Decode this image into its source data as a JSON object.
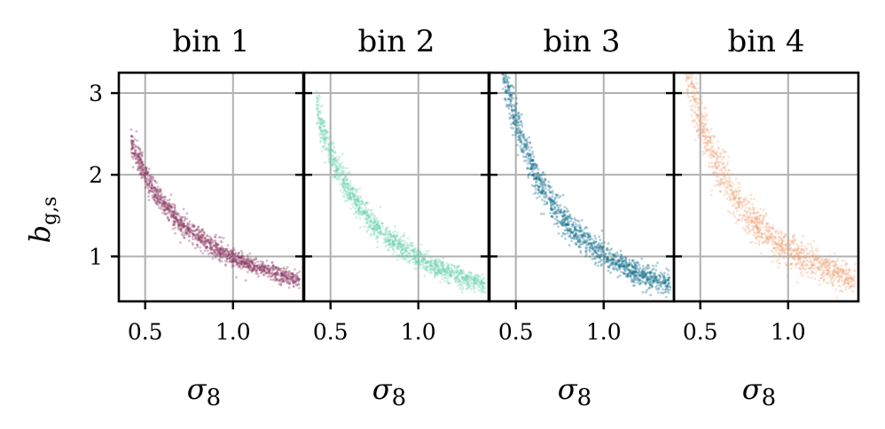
{
  "chart_data": {
    "type": "scatter",
    "ylabel": "b_{g,s}",
    "ylabel_parts": {
      "base": "b",
      "sub": "g,s"
    },
    "xlabel_parts": {
      "base": "σ",
      "sub": "8"
    },
    "xlim": [
      0.35,
      1.4
    ],
    "ylim": [
      0.45,
      3.25
    ],
    "xticks": [
      0.5,
      1.0
    ],
    "xtick_labels": [
      "0.5",
      "1.0"
    ],
    "yticks": [
      1,
      2,
      3
    ],
    "ytick_labels": [
      "1",
      "2",
      "3"
    ],
    "grid": true,
    "panels": [
      {
        "title": "bin 1",
        "color": "#8c3a63",
        "x_range": [
          0.42,
          1.38
        ],
        "amplitude": 0.99,
        "exponent": 1.02,
        "noise": 0.05,
        "opacity": 0.35
      },
      {
        "title": "bin 2",
        "color": "#66d1ad",
        "x_range": [
          0.42,
          1.38
        ],
        "amplitude": 0.98,
        "exponent": 1.22,
        "noise": 0.06,
        "opacity": 0.3
      },
      {
        "title": "bin 3",
        "color": "#0a6a8a",
        "x_range": [
          0.42,
          1.38
        ],
        "amplitude": 1.02,
        "exponent": 1.38,
        "noise": 0.07,
        "opacity": 0.33
      },
      {
        "title": "bin 4",
        "color": "#eda679",
        "x_range": [
          0.42,
          1.38
        ],
        "amplitude": 1.08,
        "exponent": 1.3,
        "noise": 0.09,
        "opacity": 0.3
      }
    ]
  }
}
